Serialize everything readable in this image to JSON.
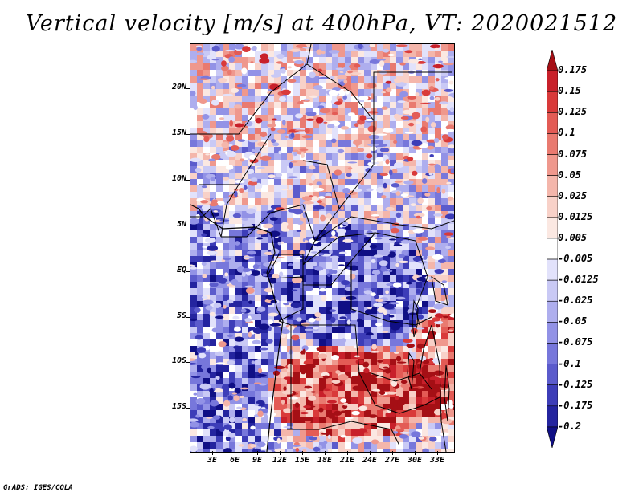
{
  "title": "Vertical velocity [m/s] at 400hPa, VT: 2020021512",
  "footer": "GrADS: IGES/COLA",
  "map": {
    "lat_labels": [
      "20N",
      "15N",
      "10N",
      "5N",
      "EQ",
      "5S",
      "10S",
      "15S"
    ],
    "lon_labels": [
      "3E",
      "6E",
      "9E",
      "12E",
      "15E",
      "18E",
      "21E",
      "24E",
      "27E",
      "30E",
      "33E"
    ]
  },
  "colorbar": {
    "labels": [
      "0.175",
      "0.15",
      "0.125",
      "0.1",
      "0.075",
      "0.05",
      "0.025",
      "0.0125",
      "0.005",
      "-0.005",
      "-0.0125",
      "-0.025",
      "-0.05",
      "-0.075",
      "-0.1",
      "-0.125",
      "-0.175",
      "-0.2"
    ],
    "colors": [
      "#a50f15",
      "#c8202a",
      "#d93a3a",
      "#e35b55",
      "#e97a70",
      "#ef988d",
      "#f4b6ab",
      "#f8d1c8",
      "#fbe8e2",
      "#ffffff",
      "#e2e2fb",
      "#c9c9f5",
      "#aeaeee",
      "#9292e6",
      "#7777db",
      "#5b5bcc",
      "#3d3db8",
      "#24249f",
      "#100f85"
    ]
  }
}
